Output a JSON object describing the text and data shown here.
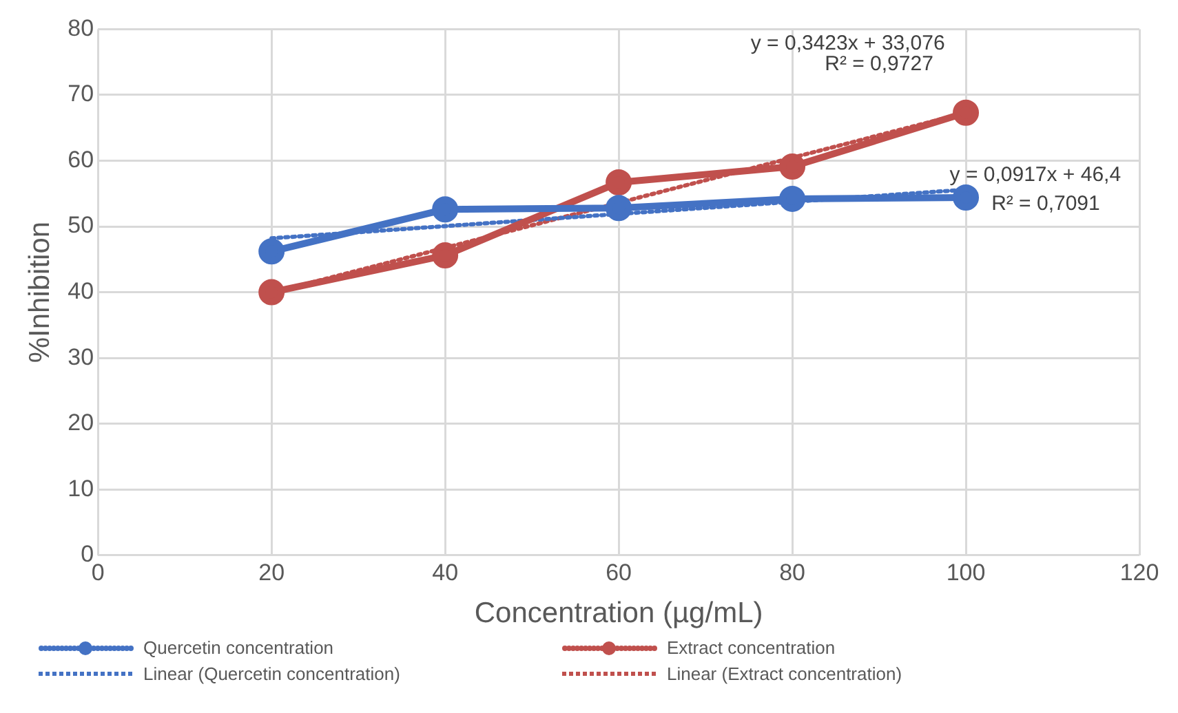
{
  "chart_data": {
    "type": "line",
    "xlabel": "Concentration (µg/mL)",
    "ylabel": "%Inhibition",
    "xlim": [
      0,
      120
    ],
    "xticks": [
      0,
      20,
      40,
      60,
      80,
      100,
      120
    ],
    "ylim": [
      0,
      80
    ],
    "yticks": [
      0,
      10,
      20,
      30,
      40,
      50,
      60,
      70,
      80
    ],
    "grid": true,
    "legend": "bottom",
    "marker": "circle",
    "series": [
      {
        "name": "Quercetin concentration",
        "color": "#4472c4",
        "x": [
          20,
          40,
          60,
          80,
          100
        ],
        "values": [
          46.2,
          52.6,
          52.8,
          54.2,
          54.4
        ],
        "line_style": "solid"
      },
      {
        "name": "Extract concentration",
        "color": "#c0504d",
        "x": [
          20,
          40,
          60,
          80,
          100
        ],
        "values": [
          40.0,
          45.6,
          56.7,
          59.1,
          67.3
        ],
        "line_style": "solid"
      },
      {
        "name": "Linear (Quercetin concentration)",
        "color": "#4472c4",
        "x": [
          20,
          100
        ],
        "values": [
          48.2,
          55.6
        ],
        "marker": "none",
        "line_style": "dotted"
      },
      {
        "name": "Linear (Extract concentration)",
        "color": "#c0504d",
        "x": [
          20,
          100
        ],
        "values": [
          39.9,
          67.3
        ],
        "marker": "none",
        "line_style": "dotted"
      }
    ],
    "annotations": [
      "y = 0,3423x + 33,076",
      "R² = 0,9727",
      "y = 0,0917x + 46,4",
      "R² = 0,7091"
    ]
  }
}
